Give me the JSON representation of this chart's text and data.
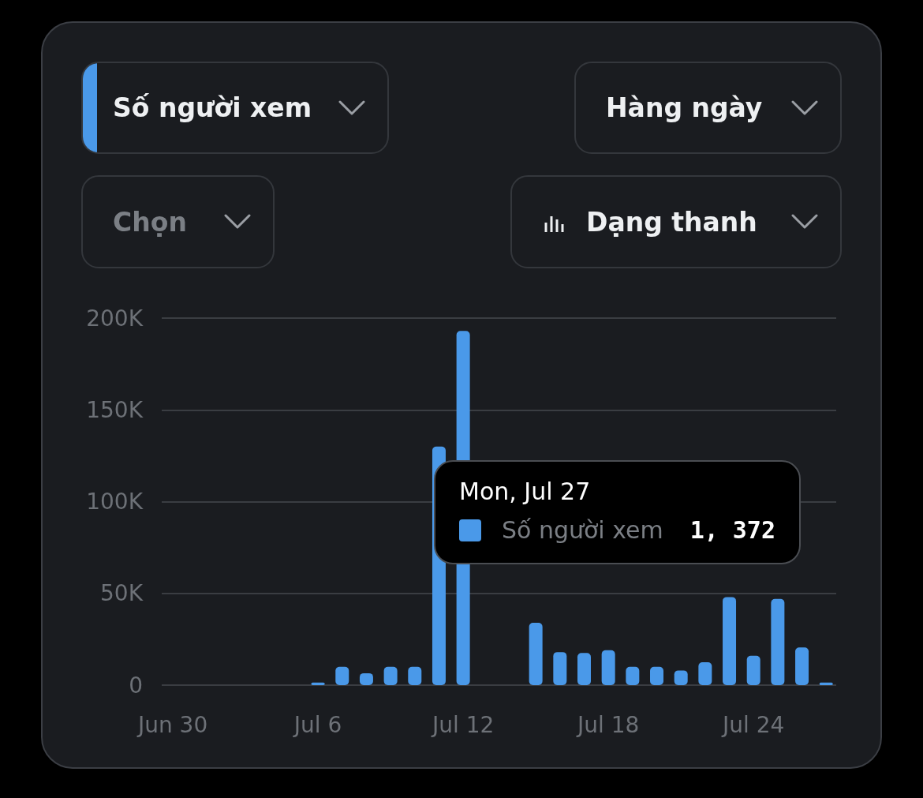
{
  "chart_data": {
    "type": "bar",
    "x": [
      "--07-06",
      "--07-07",
      "--07-08",
      "--07-09",
      "--07-10",
      "--07-11",
      "--07-12",
      "--07-13",
      "--07-14",
      "--07-15",
      "--07-16",
      "--07-17",
      "--07-18",
      "--07-19",
      "--07-20",
      "--07-21",
      "--07-22",
      "--07-23",
      "--07-24",
      "--07-25",
      "--07-26",
      "--07-27"
    ],
    "series": [
      {
        "name": "Số người xem",
        "color": "#4a99e9",
        "values": [
          1400,
          10000,
          6500,
          10000,
          10000,
          130000,
          193000,
          null,
          null,
          34000,
          18000,
          17500,
          19000,
          10000,
          10000,
          8000,
          12500,
          48000,
          16000,
          47000,
          20500,
          1372
        ]
      }
    ],
    "xlim": [
      "--06-29T13:00",
      "--07-27T10:00"
    ],
    "xticks": [
      {
        "value": "--06-30",
        "label": "Jun 30"
      },
      {
        "value": "--07-06",
        "label": "Jul 6"
      },
      {
        "value": "--07-12",
        "label": "Jul 12"
      },
      {
        "value": "--07-18",
        "label": "Jul 18"
      },
      {
        "value": "--07-24",
        "label": "Jul 24"
      }
    ],
    "ylim": [
      0,
      200000
    ],
    "yticks": [
      0,
      {
        "value": 50000,
        "label": "50K"
      },
      {
        "value": 100000,
        "label": "100K"
      },
      {
        "value": 150000,
        "label": "150K"
      },
      {
        "value": 200000,
        "label": "200K"
      }
    ],
    "grid": "y",
    "legend": "right",
    "annotations": [
      "Số người xem",
      "Hàng ngày",
      "Chọn",
      "Dạng thanh",
      "Mon, Jul 27",
      "1, 372"
    ]
  }
}
